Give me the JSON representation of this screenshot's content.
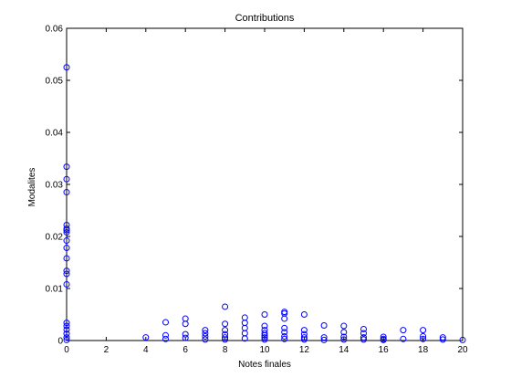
{
  "chart_data": {
    "type": "scatter",
    "title": "Contributions",
    "xlabel": "Notes finales",
    "ylabel": "Modalites",
    "xlim": [
      0,
      20
    ],
    "ylim": [
      0,
      0.06
    ],
    "xticks": [
      "0",
      "2",
      "4",
      "6",
      "8",
      "10",
      "12",
      "14",
      "16",
      "18",
      "20"
    ],
    "yticks": [
      "0",
      "0.01",
      "0.02",
      "0.03",
      "0.04",
      "0.05",
      "0.06"
    ],
    "grid": false,
    "marker_color": "#0000ff",
    "series": [
      {
        "points": [
          [
            0,
            0.0525
          ],
          [
            0,
            0.0334
          ],
          [
            0,
            0.031
          ],
          [
            0,
            0.0285
          ],
          [
            0,
            0.0222
          ],
          [
            0,
            0.0215
          ],
          [
            0,
            0.0212
          ],
          [
            0,
            0.0208
          ],
          [
            0,
            0.0192
          ],
          [
            0,
            0.0178
          ],
          [
            0,
            0.0158
          ],
          [
            0,
            0.0134
          ],
          [
            0,
            0.0128
          ],
          [
            0,
            0.0108
          ],
          [
            0,
            0.0034
          ],
          [
            0,
            0.0028
          ],
          [
            0,
            0.0021
          ],
          [
            0,
            0.0013
          ],
          [
            0,
            0.0006
          ],
          [
            0,
            0.0001
          ],
          [
            4,
            0.0006
          ],
          [
            5,
            0.0035
          ],
          [
            5,
            0.001
          ],
          [
            5,
            0.0003
          ],
          [
            6,
            0.0042
          ],
          [
            6,
            0.0032
          ],
          [
            6,
            0.0012
          ],
          [
            6,
            0.0005
          ],
          [
            7,
            0.002
          ],
          [
            7,
            0.0014
          ],
          [
            7,
            0.0008
          ],
          [
            7,
            0.0002
          ],
          [
            8,
            0.0065
          ],
          [
            8,
            0.0032
          ],
          [
            8,
            0.002
          ],
          [
            8,
            0.0012
          ],
          [
            8,
            0.0006
          ],
          [
            8,
            0.0002
          ],
          [
            9,
            0.0044
          ],
          [
            9,
            0.0034
          ],
          [
            9,
            0.0024
          ],
          [
            9,
            0.0014
          ],
          [
            9,
            0.0004
          ],
          [
            10,
            0.005
          ],
          [
            10,
            0.0028
          ],
          [
            10,
            0.002
          ],
          [
            10,
            0.0014
          ],
          [
            10,
            0.001
          ],
          [
            10,
            0.0006
          ],
          [
            10,
            0.0002
          ],
          [
            11,
            0.0055
          ],
          [
            11,
            0.0052
          ],
          [
            11,
            0.0042
          ],
          [
            11,
            0.0024
          ],
          [
            11,
            0.0016
          ],
          [
            11,
            0.0008
          ],
          [
            11,
            0.0003
          ],
          [
            12,
            0.005
          ],
          [
            12,
            0.002
          ],
          [
            12,
            0.0012
          ],
          [
            12,
            0.0006
          ],
          [
            12,
            0.0002
          ],
          [
            13,
            0.0029
          ],
          [
            13,
            0.0006
          ],
          [
            13,
            0.0001
          ],
          [
            14,
            0.0028
          ],
          [
            14,
            0.0016
          ],
          [
            14,
            0.0007
          ],
          [
            14,
            0.0002
          ],
          [
            15,
            0.0022
          ],
          [
            15,
            0.0014
          ],
          [
            15,
            0.0006
          ],
          [
            15,
            0.0002
          ],
          [
            16,
            0.0007
          ],
          [
            16,
            0.0003
          ],
          [
            16,
            0.0001
          ],
          [
            17,
            0.002
          ],
          [
            17,
            0.0003
          ],
          [
            18,
            0.002
          ],
          [
            18,
            0.0008
          ],
          [
            18,
            0.0003
          ],
          [
            19,
            0.0006
          ],
          [
            19,
            0.0002
          ],
          [
            20,
            0.0001
          ]
        ]
      }
    ]
  }
}
